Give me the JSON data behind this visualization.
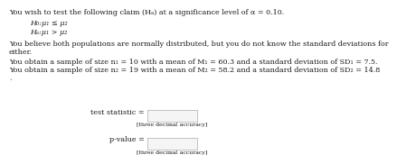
{
  "title_line": "You wish to test the following claim (Hₐ) at a significance level of α = 0.10.",
  "h0": "H₀:μ₁ ≤ μ₂",
  "ha": "Hₐ:μ₁ > μ₂",
  "normal_line1": "You believe both populations are normally distributed, but you do not know the standard deviations for",
  "normal_line2": "either.",
  "sample1": "You obtain a sample of size n₁ = 10 with a mean of M₁ = 60.3 and a standard deviation of SD₁ = 7.5.",
  "sample2": "You obtain a sample of size n₂ = 19 with a mean of M₂ = 58.2 and a standard deviation of SD₂ = 14.8",
  "dot": ".",
  "ts_label": "test statistic =",
  "pv_label": "p-value =",
  "box_label": "[three decimal accuracy]",
  "bg_color": "#ffffff",
  "text_color": "#1a1a1a",
  "box_facecolor": "#f5f5f5",
  "box_edge_color": "#bbbbbb",
  "font_size": 5.8,
  "small_font_size": 4.5
}
